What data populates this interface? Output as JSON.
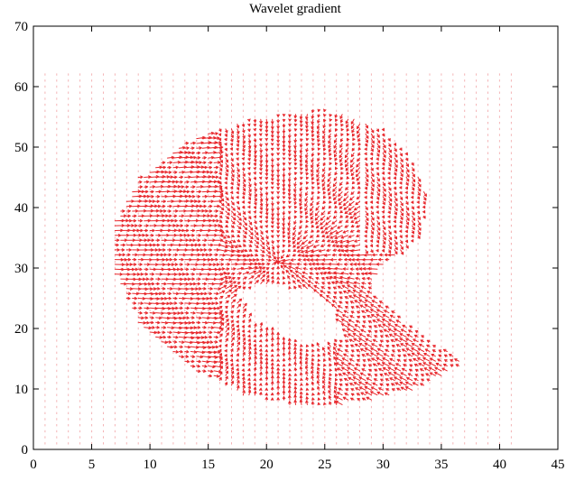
{
  "chart_data": {
    "type": "quiver",
    "title": "Wavelet gradient",
    "xlabel": "",
    "ylabel": "",
    "xlim": [
      0,
      45
    ],
    "ylim": [
      0,
      70
    ],
    "xticks": [
      0,
      5,
      10,
      15,
      20,
      25,
      30,
      35,
      40,
      45
    ],
    "yticks": [
      0,
      10,
      20,
      30,
      40,
      50,
      60,
      70
    ],
    "grid": false,
    "arrow_color": "#e8262b",
    "faint_color": "#f4b3b5",
    "sampling_grid": {
      "x_start": 1,
      "x_end": 41,
      "x_step": 1,
      "y_start": 1,
      "y_end": 62,
      "y_step": 1
    },
    "field": {
      "description_omitted": true,
      "outer_boundary": [
        [
          7,
          29
        ],
        [
          7,
          38
        ],
        [
          9,
          45
        ],
        [
          13,
          51
        ],
        [
          19,
          55
        ],
        [
          25,
          56.5
        ],
        [
          30,
          53
        ],
        [
          32.5,
          48
        ],
        [
          34,
          41
        ],
        [
          33,
          35
        ],
        [
          29.5,
          29
        ],
        [
          29,
          26
        ],
        [
          32,
          21
        ],
        [
          35,
          17
        ],
        [
          37,
          14
        ],
        [
          33,
          10
        ],
        [
          28,
          7.5
        ],
        [
          23,
          7
        ],
        [
          18,
          9
        ],
        [
          13,
          14
        ],
        [
          9,
          21
        ]
      ],
      "inner_boundary": [
        [
          17,
          26
        ],
        [
          19,
          21
        ],
        [
          22,
          18
        ],
        [
          25,
          17
        ],
        [
          27,
          19
        ],
        [
          26,
          23
        ],
        [
          24,
          26
        ],
        [
          20,
          27
        ]
      ]
    }
  }
}
